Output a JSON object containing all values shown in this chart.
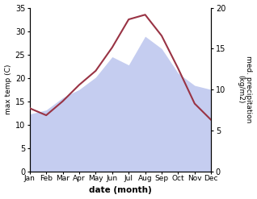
{
  "months": [
    "Jan",
    "Feb",
    "Mar",
    "Apr",
    "May",
    "Jun",
    "Jul",
    "Aug",
    "Sep",
    "Oct",
    "Nov",
    "Dec"
  ],
  "max_temp": [
    13.5,
    12.0,
    15.0,
    18.5,
    21.5,
    26.5,
    32.5,
    33.5,
    29.0,
    22.0,
    14.5,
    11.0
  ],
  "precipitation": [
    7.0,
    7.5,
    9.0,
    10.0,
    11.5,
    14.0,
    13.0,
    16.5,
    15.0,
    12.0,
    10.5,
    10.0
  ],
  "temp_color": "#993344",
  "precip_fill_color": "#c5cdf0",
  "left_ylim": [
    0,
    35
  ],
  "right_ylim": [
    0,
    20
  ],
  "left_yticks": [
    0,
    5,
    10,
    15,
    20,
    25,
    30,
    35
  ],
  "right_yticks": [
    0,
    5,
    10,
    15,
    20
  ],
  "xlabel": "date (month)",
  "ylabel_left": "max temp (C)",
  "ylabel_right": "med. precipitation\n(kg/m2)",
  "bg_color": "#ffffff"
}
